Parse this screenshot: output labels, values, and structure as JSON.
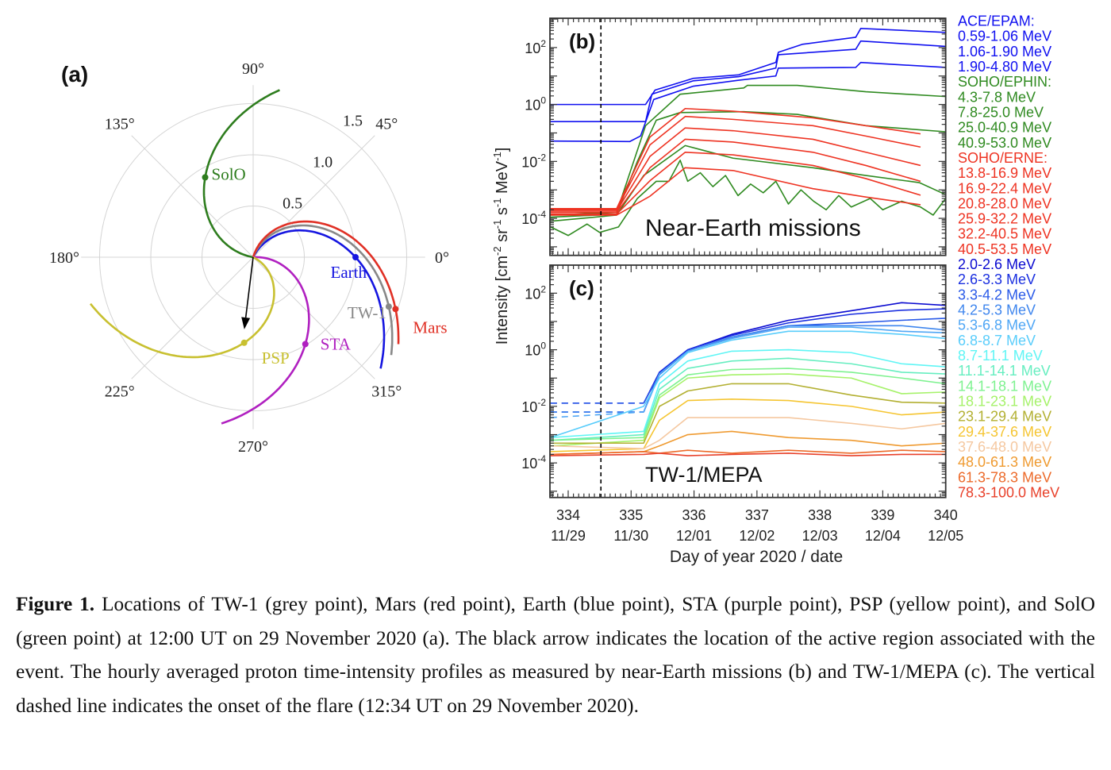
{
  "figure": {
    "xlabel": "Day of year 2020 / date",
    "ylabel": {
      "main": "Intensity [cm",
      "e1": "-2",
      "p2": " sr",
      "e2": "-1",
      "p3": " s",
      "e3": "-1",
      "p4": " MeV",
      "e4": "-1",
      "p5": "]"
    }
  },
  "caption": {
    "label": "Figure 1.",
    "text": "Locations of TW-1 (grey point), Mars (red point), Earth (blue point), STA (purple point), PSP (yellow point), and SolO (green point) at 12:00 UT on 29 November 2020 (a). The black arrow indicates the location of the active region associated with the event. The hourly averaged proton time-intensity profiles as measured by near-Earth missions (b) and TW-1/MEPA (c). The vertical dashed line indicates the onset of the flare (12:34 UT on 29 November 2020)."
  },
  "chart_data": [
    {
      "type": "polar",
      "panel_label": "(a)",
      "angle_ticks": [
        0,
        45,
        90,
        135,
        180,
        225,
        270,
        315
      ],
      "angle_tick_labels": [
        "0°",
        "45°",
        "90°",
        "135°",
        "180°",
        "225°",
        "270°",
        "315°"
      ],
      "radial_ticks": [
        0.5,
        1.0,
        1.5
      ],
      "radial_tick_labels": [
        "0.5",
        "1.0",
        "1.5"
      ],
      "bodies": [
        {
          "name": "SolO",
          "r": 0.91,
          "angle_deg": 121,
          "color": "#2e7d1e"
        },
        {
          "name": "Earth",
          "r": 1.0,
          "angle_deg": 0,
          "color": "#1515e0"
        },
        {
          "name": "TW-1",
          "r": 1.41,
          "angle_deg": 340,
          "color": "#888888"
        },
        {
          "name": "Mars",
          "r": 1.48,
          "angle_deg": 340,
          "color": "#e03025"
        },
        {
          "name": "STA",
          "r": 0.99,
          "angle_deg": 301,
          "color": "#b020c0"
        },
        {
          "name": "PSP",
          "r": 0.84,
          "angle_deg": 264,
          "color": "#c8c030"
        }
      ],
      "active_region_arrow": {
        "angle_deg": 263,
        "r": 0.71,
        "color": "#000000"
      }
    },
    {
      "type": "line",
      "panel_label": "(b)",
      "annotation": "Near-Earth missions",
      "yscale": "log",
      "ylim": [
        5e-06,
        1070.0
      ],
      "xlim": [
        333.71,
        340
      ],
      "onset_day": 334.52,
      "y_ticks": [
        {
          "value": 100.0,
          "base": "10",
          "exp": "2"
        },
        {
          "value": 1.0,
          "base": "10",
          "exp": "0"
        },
        {
          "value": 0.01,
          "base": "10",
          "exp": "-2"
        },
        {
          "value": 0.0001,
          "base": "10",
          "exp": "-4"
        }
      ],
      "legend": [
        {
          "text": "ACE/EPAM:",
          "color": "#1010f0"
        },
        {
          "text": "0.59-1.06 MeV",
          "color": "#1010f0"
        },
        {
          "text": "1.06-1.90 MeV",
          "color": "#1010f0"
        },
        {
          "text": "1.90-4.80 MeV",
          "color": "#1010f0"
        },
        {
          "text": "SOHO/EPHIN:",
          "color": "#2f8a20"
        },
        {
          "text": "4.3-7.8 MeV",
          "color": "#2f8a20"
        },
        {
          "text": "7.8-25.0 MeV",
          "color": "#2f8a20"
        },
        {
          "text": "25.0-40.9 MeV",
          "color": "#2f8a20"
        },
        {
          "text": "40.9-53.0 MeV",
          "color": "#2f8a20"
        },
        {
          "text": "SOHO/ERNE:",
          "color": "#ee3322"
        },
        {
          "text": "13.8-16.9 MeV",
          "color": "#ee3322"
        },
        {
          "text": "16.9-22.4 MeV",
          "color": "#ee3322"
        },
        {
          "text": "20.8-28.0 MeV",
          "color": "#ee3322"
        },
        {
          "text": "25.9-32.2 MeV",
          "color": "#ee3322"
        },
        {
          "text": "32.2-40.5 MeV",
          "color": "#ee3322"
        },
        {
          "text": "40.5-53.5 MeV",
          "color": "#ee3322"
        }
      ],
      "series": [
        {
          "name": "0.59-1.06 MeV",
          "color": "#1010f0",
          "x": [
            333.72,
            335.23,
            335.38,
            335.99,
            336.71,
            337.3,
            337.34,
            337.72,
            338.57,
            338.65,
            340
          ],
          "y": [
            1.0,
            1.0,
            3.2,
            8.3,
            11,
            30,
            68,
            130,
            230,
            470,
            340
          ]
        },
        {
          "name": "1.06-1.90 MeV",
          "color": "#1010f0",
          "x": [
            333.72,
            335.23,
            335.33,
            335.99,
            336.71,
            337.3,
            337.34,
            338.57,
            338.65,
            340
          ],
          "y": [
            0.25,
            0.25,
            2.3,
            6.8,
            9.5,
            19,
            56,
            87,
            170,
            110
          ]
        },
        {
          "name": "1.90-4.80 MeV",
          "color": "#1010f0",
          "x": [
            333.72,
            334.98,
            335.15,
            335.36,
            335.99,
            336.71,
            337.3,
            337.34,
            338.57,
            338.65,
            340
          ],
          "y": [
            0.052,
            0.05,
            0.078,
            1.5,
            4.4,
            7.1,
            10,
            19,
            20,
            30,
            20
          ]
        },
        {
          "name": "4.3-7.8 MeV",
          "color": "#2f8a20",
          "x": [
            333.72,
            334.77,
            335.23,
            335.78,
            336.79,
            336.85,
            337.64,
            338.73,
            340
          ],
          "y": [
            0.00013,
            0.00016,
            0.18,
            2.3,
            3.8,
            4.7,
            4.7,
            2.8,
            1.9
          ]
        },
        {
          "name": "7.8-25.0 MeV",
          "color": "#2f8a20",
          "x": [
            333.72,
            334.77,
            335.1,
            335.4,
            335.78,
            336.79,
            337.64,
            338.73,
            340
          ],
          "y": [
            0.00011,
            0.00014,
            0.01,
            0.28,
            0.52,
            0.56,
            0.45,
            0.18,
            0.11
          ]
        },
        {
          "name": "25.0-40.9 MeV",
          "color": "#2f8a20",
          "x": [
            333.72,
            334.77,
            335.2,
            335.86,
            336.62,
            337.89,
            338.73,
            339.58,
            340
          ],
          "y": [
            7.9e-05,
            0.00013,
            0.0032,
            0.036,
            0.013,
            0.006,
            0.0032,
            0.0018,
            0.00068
          ]
        },
        {
          "name": "40.9-53.0 MeV",
          "color": "#2f8a20",
          "x": [
            333.72,
            334.0,
            334.3,
            334.5,
            334.8,
            335.1,
            335.4,
            335.6,
            335.78,
            335.9,
            336.1,
            336.3,
            336.5,
            336.7,
            336.9,
            337.1,
            337.3,
            337.5,
            337.7,
            337.9,
            338.1,
            338.3,
            338.5,
            338.8,
            339.0,
            339.3,
            339.6,
            339.8,
            340
          ],
          "y": [
            5e-05,
            2.5e-05,
            6.3e-05,
            3.2e-05,
            5e-05,
            0.0005,
            0.002,
            0.002,
            0.011,
            0.002,
            0.004,
            0.0013,
            0.0032,
            0.00063,
            0.0016,
            0.00079,
            0.002,
            0.00032,
            0.001,
            0.0004,
            0.0002,
            0.00063,
            0.00025,
            0.0005,
            0.0002,
            0.0004,
            0.00025,
            0.00013,
            0.0005
          ]
        },
        {
          "name": "13.8-16.9 MeV",
          "color": "#ee3322",
          "x": [
            333.72,
            334.77,
            335.3,
            335.86,
            336.62,
            337.89,
            338.73,
            339.6
          ],
          "y": [
            0.00022,
            0.00022,
            0.072,
            0.72,
            0.58,
            0.34,
            0.18,
            0.093
          ]
        },
        {
          "name": "16.9-22.4 MeV",
          "color": "#ee3322",
          "x": [
            333.72,
            334.77,
            335.3,
            335.86,
            336.62,
            337.89,
            338.73,
            339.6
          ],
          "y": [
            0.0002,
            0.0002,
            0.038,
            0.38,
            0.3,
            0.18,
            0.078,
            0.032
          ]
        },
        {
          "name": "20.8-28.0 MeV",
          "color": "#ee3322",
          "x": [
            333.72,
            334.77,
            335.3,
            335.86,
            336.62,
            337.89,
            338.73,
            339.6
          ],
          "y": [
            0.00018,
            0.00018,
            0.015,
            0.15,
            0.12,
            0.06,
            0.021,
            0.0072
          ]
        },
        {
          "name": "25.9-32.2 MeV",
          "color": "#ee3322",
          "x": [
            333.72,
            334.77,
            335.3,
            335.86,
            336.62,
            337.89,
            338.73,
            339.6
          ],
          "y": [
            0.00016,
            0.00016,
            0.006,
            0.06,
            0.048,
            0.021,
            0.0072,
            0.002
          ]
        },
        {
          "name": "32.2-40.5 MeV",
          "color": "#ee3322",
          "x": [
            333.72,
            334.77,
            335.3,
            335.86,
            336.62,
            337.89,
            338.73,
            339.6
          ],
          "y": [
            0.00014,
            0.00014,
            0.0021,
            0.021,
            0.017,
            0.0072,
            0.0025,
            0.00065
          ]
        },
        {
          "name": "40.5-53.5 MeV",
          "color": "#ee3322",
          "x": [
            333.72,
            334.77,
            335.3,
            335.86,
            336.62,
            337.89,
            338.73,
            339.6
          ],
          "y": [
            0.00013,
            0.00013,
            0.0006,
            0.006,
            0.0048,
            0.0011,
            0.00056,
            0.0003
          ]
        }
      ]
    },
    {
      "type": "line",
      "panel_label": "(c)",
      "annotation": "TW-1/MEPA",
      "yscale": "log",
      "ylim": [
        6e-06,
        980.0
      ],
      "xlim": [
        333.71,
        340
      ],
      "onset_day": 334.52,
      "x_ticks": [
        {
          "value": 334,
          "label": "334",
          "date": "11/29"
        },
        {
          "value": 335,
          "label": "335",
          "date": "11/30"
        },
        {
          "value": 336,
          "label": "336",
          "date": "12/01"
        },
        {
          "value": 337,
          "label": "337",
          "date": "12/02"
        },
        {
          "value": 338,
          "label": "338",
          "date": "12/03"
        },
        {
          "value": 339,
          "label": "339",
          "date": "12/04"
        },
        {
          "value": 340,
          "label": "340",
          "date": "12/05"
        }
      ],
      "y_ticks": [
        {
          "value": 100.0,
          "base": "10",
          "exp": "2"
        },
        {
          "value": 1.0,
          "base": "10",
          "exp": "0"
        },
        {
          "value": 0.01,
          "base": "10",
          "exp": "-2"
        },
        {
          "value": 0.0001,
          "base": "10",
          "exp": "-4"
        }
      ],
      "pre_onset_dashed_until": 335.2,
      "x": [
        333.72,
        335.2,
        335.45,
        335.9,
        336.6,
        337.5,
        338.5,
        339.3,
        340
      ],
      "series": [
        {
          "name": "2.0-2.6 MeV",
          "color": "#0a0ad0",
          "dashed_pre": true,
          "y": [
            0.013,
            0.013,
            0.16,
            1.0,
            3.5,
            11,
            24,
            46,
            37
          ]
        },
        {
          "name": "2.6-3.3 MeV",
          "color": "#1a2fe0",
          "dashed_pre": true,
          "y": [
            0.0063,
            0.0063,
            0.16,
            1.0,
            3.2,
            8.9,
            18,
            25,
            28
          ]
        },
        {
          "name": "3.3-4.2 MeV",
          "color": "#2a5ae8",
          "dashed_pre": true,
          "y": [
            0.013,
            0.013,
            0.14,
            0.89,
            2.8,
            7.1,
            8.9,
            11,
            13
          ]
        },
        {
          "name": "4.2-5.3 MeV",
          "color": "#3f86ee",
          "dashed_pre": true,
          "y": [
            0.0063,
            0.0063,
            0.13,
            0.89,
            2.8,
            7.1,
            7.1,
            7.1,
            5.0
          ]
        },
        {
          "name": "5.3-6.8 MeV",
          "color": "#4fa6f5",
          "dashed_pre": true,
          "y": [
            0.004,
            0.0063,
            0.14,
            0.89,
            2.5,
            6.3,
            6.3,
            4.5,
            4.0
          ]
        },
        {
          "name": "6.8-8.7 MeV",
          "color": "#59cdfb",
          "dashed_pre": false,
          "y": [
            0.00079,
            0.01,
            0.1,
            0.79,
            2.2,
            4.5,
            4.5,
            3.5,
            2.5
          ]
        },
        {
          "name": "8.7-11.1 MeV",
          "color": "#5ff5f5",
          "dashed_pre": false,
          "y": [
            0.00079,
            0.0013,
            0.063,
            0.4,
            0.89,
            1.0,
            0.79,
            0.32,
            0.25
          ]
        },
        {
          "name": "11.1-14.1 MeV",
          "color": "#66eec0",
          "dashed_pre": false,
          "y": [
            0.00063,
            0.001,
            0.04,
            0.22,
            0.4,
            0.5,
            0.32,
            0.16,
            0.14
          ]
        },
        {
          "name": "14.1-18.1 MeV",
          "color": "#7ef290",
          "dashed_pre": false,
          "y": [
            0.00063,
            0.00079,
            0.025,
            0.13,
            0.2,
            0.22,
            0.16,
            0.1,
            0.063
          ]
        },
        {
          "name": "18.1-23.1 MeV",
          "color": "#a6f26a",
          "dashed_pre": false,
          "y": [
            0.0004,
            0.00063,
            0.02,
            0.1,
            0.13,
            0.14,
            0.1,
            0.028,
            0.032
          ]
        },
        {
          "name": "23.1-29.4 MeV",
          "color": "#b3b032",
          "dashed_pre": false,
          "y": [
            0.0005,
            0.0005,
            0.01,
            0.035,
            0.063,
            0.063,
            0.025,
            0.014,
            0.013
          ]
        },
        {
          "name": "29.4-37.6 MeV",
          "color": "#f5c531",
          "dashed_pre": false,
          "y": [
            0.00025,
            0.00032,
            0.0032,
            0.016,
            0.018,
            0.016,
            0.01,
            0.005,
            0.0063
          ]
        },
        {
          "name": "37.6-48.0 MeV",
          "color": "#f5c8a0",
          "dashed_pre": false,
          "y": [
            0.0004,
            0.00032,
            0.00063,
            0.004,
            0.004,
            0.004,
            0.0025,
            0.0016,
            0.0025
          ]
        },
        {
          "name": "48.0-61.3 MeV",
          "color": "#ef9a30",
          "dashed_pre": false,
          "y": [
            0.0002,
            0.00025,
            0.0004,
            0.001,
            0.0013,
            0.00079,
            0.00063,
            0.0004,
            0.0005
          ]
        },
        {
          "name": "61.3-78.3 MeV",
          "color": "#ec6a2a",
          "dashed_pre": false,
          "y": [
            0.0002,
            0.00025,
            0.00022,
            0.00028,
            0.00022,
            0.00028,
            0.00022,
            0.00028,
            0.00025
          ]
        },
        {
          "name": "78.3-100.0 MeV",
          "color": "#e8402a",
          "dashed_pre": false,
          "y": [
            0.00018,
            0.0002,
            0.00022,
            0.00018,
            0.0002,
            0.00022,
            0.00018,
            0.0002,
            0.0002
          ]
        }
      ]
    }
  ]
}
